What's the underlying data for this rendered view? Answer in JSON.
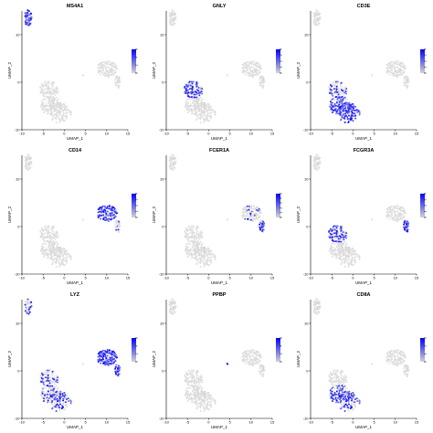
{
  "chart_data": {
    "type": "scatter",
    "xlabel": "UMAP_1",
    "ylabel": "UMAP_2",
    "xlim": [
      -10,
      15
    ],
    "ylim": [
      -10,
      15
    ],
    "x_ticks": [
      -10,
      -5,
      0,
      5,
      10,
      15
    ],
    "y_ticks": [
      -10,
      0,
      10
    ],
    "colors": {
      "low": "#d3d3d3",
      "high": "#0000ff",
      "axis": "#000000"
    },
    "clusters": [
      {
        "id": "bcell",
        "cx": -8.5,
        "cy": 13.5,
        "rx": 0.9,
        "ry": 1.8,
        "n": 70
      },
      {
        "id": "tcell_top",
        "cx": -3.5,
        "cy": -1.5,
        "rx": 2.4,
        "ry": 1.8,
        "n": 110
      },
      {
        "id": "tcell_mid",
        "cx": -3.0,
        "cy": -5.0,
        "rx": 2.7,
        "ry": 2.0,
        "n": 150
      },
      {
        "id": "tcell_bot",
        "cx": -1.0,
        "cy": -6.5,
        "rx": 2.6,
        "ry": 2.1,
        "n": 140
      },
      {
        "id": "mono_main",
        "cx": 10.0,
        "cy": 2.8,
        "rx": 2.5,
        "ry": 1.7,
        "n": 140
      },
      {
        "id": "mono_tail",
        "cx": 12.5,
        "cy": 0.0,
        "rx": 0.7,
        "ry": 1.5,
        "n": 40
      },
      {
        "id": "platelet",
        "cx": 4.5,
        "cy": 1.5,
        "rx": 0.15,
        "ry": 0.15,
        "n": 2
      }
    ],
    "panels": [
      {
        "gene": "MS4A1",
        "legend": [
          "0",
          "2",
          "4",
          "6"
        ],
        "legend_max": 6,
        "expr": {
          "bcell": 0.85
        }
      },
      {
        "gene": "GNLY",
        "legend": [
          "0",
          "1",
          "2",
          "3",
          "4"
        ],
        "legend_max": 4,
        "expr": {
          "tcell_top": 0.75
        }
      },
      {
        "gene": "CD3E",
        "legend": [
          "0",
          "1",
          "2",
          "3",
          "4"
        ],
        "legend_max": 4,
        "expr": {
          "tcell_top": 0.3,
          "tcell_mid": 0.7,
          "tcell_bot": 0.75
        }
      },
      {
        "gene": "CD14",
        "legend": [
          "0",
          "1",
          "2",
          "3",
          "4"
        ],
        "legend_max": 4,
        "expr": {
          "mono_main": 0.7,
          "mono_tail": 0.1
        }
      },
      {
        "gene": "FCER1A",
        "legend": [
          "0",
          "1",
          "2",
          "3",
          "4",
          "5"
        ],
        "legend_max": 5,
        "expr": {
          "mono_main": 0.12,
          "mono_tail": 0.55
        }
      },
      {
        "gene": "FCGR3A",
        "legend": [
          "0",
          "1",
          "2",
          "3",
          "4"
        ],
        "legend_max": 4,
        "expr": {
          "tcell_top": 0.65,
          "mono_tail": 0.85
        }
      },
      {
        "gene": "LYZ",
        "legend": [
          "0",
          "2",
          "4",
          "6"
        ],
        "legend_max": 6,
        "expr": {
          "bcell": 0.35,
          "tcell_top": 0.3,
          "tcell_mid": 0.3,
          "tcell_bot": 0.3,
          "mono_main": 0.9,
          "mono_tail": 0.6
        }
      },
      {
        "gene": "PPBP",
        "legend": [
          "0",
          "2",
          "4",
          "6"
        ],
        "legend_max": 6,
        "expr": {
          "platelet": 1.0
        }
      },
      {
        "gene": "CD8A",
        "legend": [
          "0",
          "1",
          "2",
          "3"
        ],
        "legend_max": 3,
        "expr": {
          "tcell_mid": 0.55,
          "tcell_bot": 0.3
        }
      }
    ]
  }
}
